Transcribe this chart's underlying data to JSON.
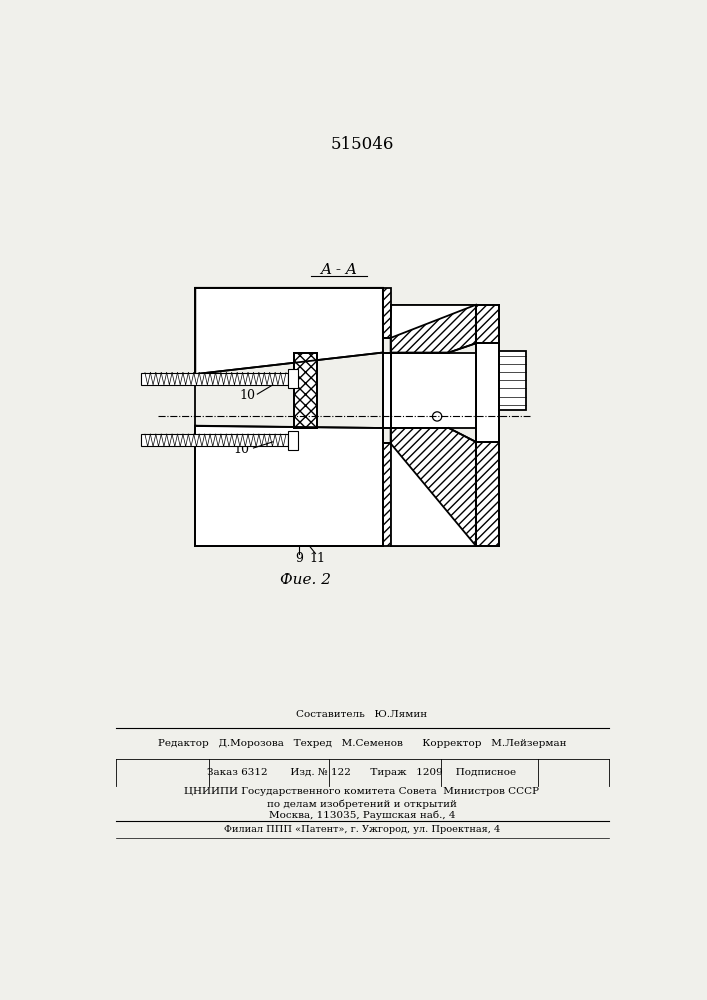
{
  "patent_number": "515046",
  "fig_label": "Фие. 2",
  "section_label": "A - A",
  "footer_line1": "Составитель   Ю.Лямин",
  "footer_line2_r": "Редактор   Д.Морозова   Техред   М.Семенов      Корректор   М.Лейзерман",
  "footer_line3": "Заказ 6312       Изд. № 122      Тираж   1209    Подписное",
  "footer_line4": "ЦНИИПИ Государственного комитета Совета  Министров СССР",
  "footer_line5": "по делам изобретений и открытий",
  "footer_line6": "Москва, 113035, Раушская наб., 4",
  "footer_line7": "Филиал ППП «Патент», г. Ужгород, ул. Проектная, 4",
  "bg_color": "#f0f0eb",
  "line_color": "#000000"
}
